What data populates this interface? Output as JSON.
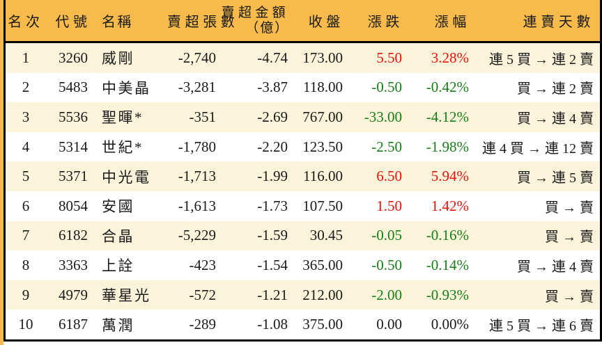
{
  "chart_data": {
    "type": "table",
    "columns": [
      {
        "key": "rank",
        "label": "名次"
      },
      {
        "key": "code",
        "label": "代號"
      },
      {
        "key": "name",
        "label": "名稱"
      },
      {
        "key": "sell_volume",
        "label": "賣超張數"
      },
      {
        "key": "sell_amount",
        "label": "賣超金額",
        "label_line2": "（億）"
      },
      {
        "key": "close",
        "label": "收盤"
      },
      {
        "key": "change",
        "label": "漲跌"
      },
      {
        "key": "change_pct",
        "label": "漲幅"
      },
      {
        "key": "streak",
        "label": "連賣天數"
      }
    ],
    "rows": [
      {
        "rank": "1",
        "code": "3260",
        "name": "威剛",
        "sell_volume": "-2,740",
        "sell_amount": "-4.74",
        "close": "173.00",
        "change": "5.50",
        "change_pct": "3.28%",
        "change_dir": "up",
        "streak": "連 5 買 → 連 2 賣"
      },
      {
        "rank": "2",
        "code": "5483",
        "name": "中美晶",
        "sell_volume": "-3,281",
        "sell_amount": "-3.87",
        "close": "118.00",
        "change": "-0.50",
        "change_pct": "-0.42%",
        "change_dir": "down",
        "streak": "買 → 連 2 賣"
      },
      {
        "rank": "3",
        "code": "5536",
        "name": "聖暉*",
        "sell_volume": "-351",
        "sell_amount": "-2.69",
        "close": "767.00",
        "change": "-33.00",
        "change_pct": "-4.12%",
        "change_dir": "down",
        "streak": "買 → 連 4 賣"
      },
      {
        "rank": "4",
        "code": "5314",
        "name": "世紀*",
        "sell_volume": "-1,780",
        "sell_amount": "-2.20",
        "close": "123.50",
        "change": "-2.50",
        "change_pct": "-1.98%",
        "change_dir": "down",
        "streak": "連 4 買 → 連 12 賣"
      },
      {
        "rank": "5",
        "code": "5371",
        "name": "中光電",
        "sell_volume": "-1,713",
        "sell_amount": "-1.99",
        "close": "116.00",
        "change": "6.50",
        "change_pct": "5.94%",
        "change_dir": "up",
        "streak": "買 → 連 5 賣"
      },
      {
        "rank": "6",
        "code": "8054",
        "name": "安國",
        "sell_volume": "-1,613",
        "sell_amount": "-1.73",
        "close": "107.50",
        "change": "1.50",
        "change_pct": "1.42%",
        "change_dir": "up",
        "streak": "買 → 賣"
      },
      {
        "rank": "7",
        "code": "6182",
        "name": "合晶",
        "sell_volume": "-5,229",
        "sell_amount": "-1.59",
        "close": "30.45",
        "change": "-0.05",
        "change_pct": "-0.16%",
        "change_dir": "down",
        "streak": "買 → 賣"
      },
      {
        "rank": "8",
        "code": "3363",
        "name": "上詮",
        "sell_volume": "-423",
        "sell_amount": "-1.54",
        "close": "365.00",
        "change": "-0.50",
        "change_pct": "-0.14%",
        "change_dir": "down",
        "streak": "買 → 連 4 賣"
      },
      {
        "rank": "9",
        "code": "4979",
        "name": "華星光",
        "sell_volume": "-572",
        "sell_amount": "-1.21",
        "close": "212.00",
        "change": "-2.00",
        "change_pct": "-0.93%",
        "change_dir": "down",
        "streak": "買 → 賣"
      },
      {
        "rank": "10",
        "code": "6187",
        "name": "萬潤",
        "sell_volume": "-289",
        "sell_amount": "-1.08",
        "close": "375.00",
        "change": "0.00",
        "change_pct": "0.00%",
        "change_dir": "flat",
        "streak": "連 5 買 → 連 6 賣"
      }
    ]
  },
  "colors": {
    "header_bg": "#f7ba4b",
    "row_alt_bg": "#fcf3db",
    "row_bg": "#ffffff",
    "up_red": "#e8120b",
    "down_green": "#177d17",
    "neutral_text": "#1a1a1a",
    "border": "#000000",
    "outer_frame": "#f7ba4b"
  }
}
